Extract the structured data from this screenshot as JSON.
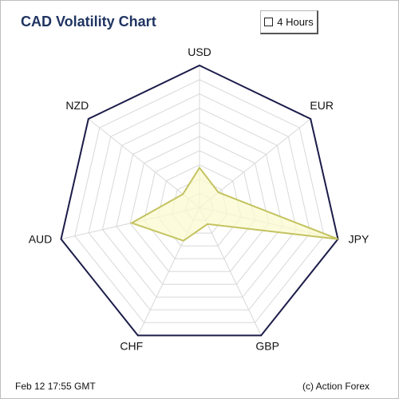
{
  "title": "CAD Volatility Chart",
  "period_button": {
    "label": "4 Hours"
  },
  "footer": {
    "timestamp": "Feb 12  17:55 GMT",
    "credit": "(c) Action Forex"
  },
  "colors": {
    "outline": "#1c1c4a",
    "grid": "#d8d8d8",
    "series_fill": "#fbfbd0",
    "series_stroke": "#c4c25f",
    "title": "#1f3461"
  },
  "chart_data": {
    "type": "radar",
    "title": "CAD Volatility Chart",
    "categories": [
      "USD",
      "EUR",
      "JPY",
      "GBP",
      "CHF",
      "AUD",
      "NZD"
    ],
    "rlim": [
      0,
      100
    ],
    "grid_levels": 10,
    "series": [
      {
        "values": [
          28,
          17,
          100,
          13,
          26,
          49,
          15
        ]
      }
    ],
    "grid": true
  }
}
